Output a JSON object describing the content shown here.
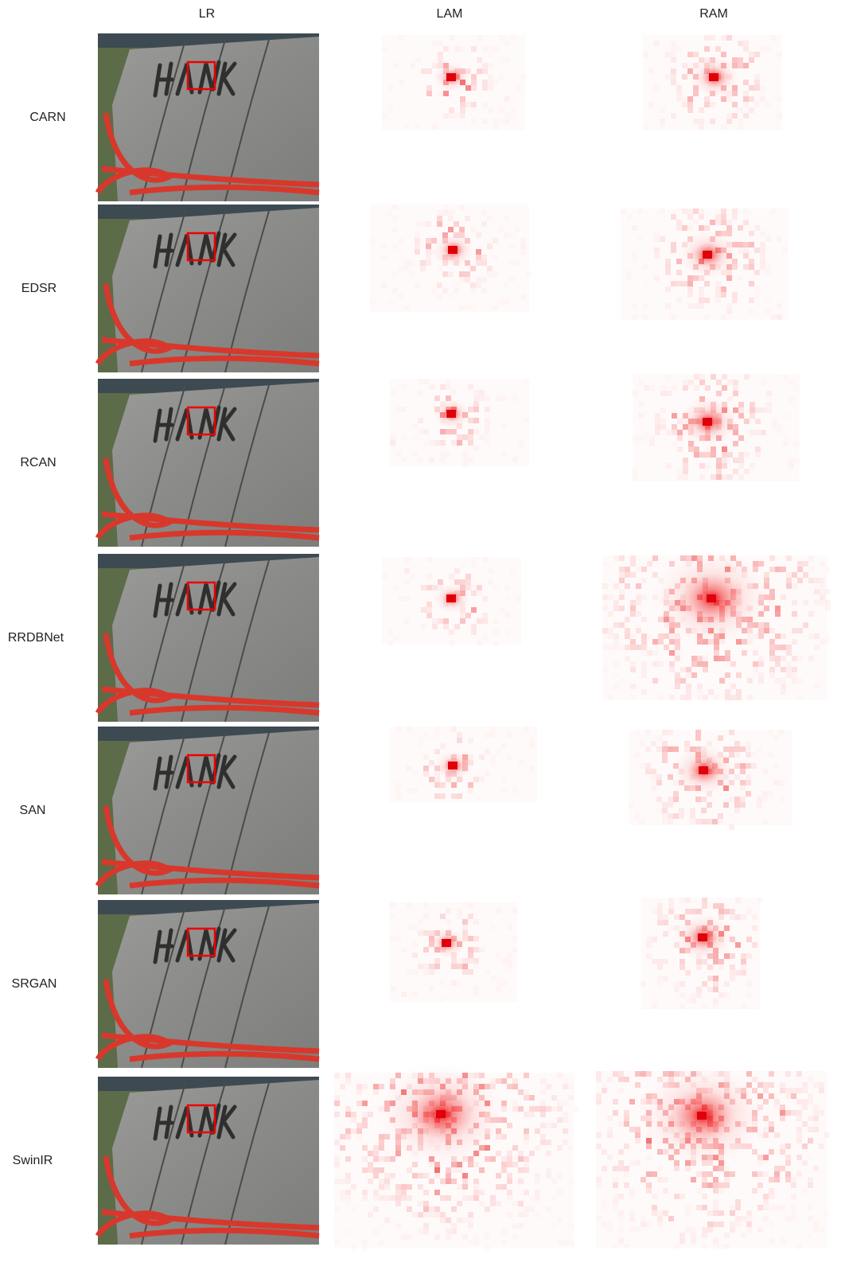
{
  "columns": [
    "LR",
    "LAM",
    "RAM"
  ],
  "rows": [
    "CARN",
    "EDSR",
    "RCAN",
    "RRDBNet",
    "SAN",
    "SRGAN",
    "SwinIR"
  ]
}
